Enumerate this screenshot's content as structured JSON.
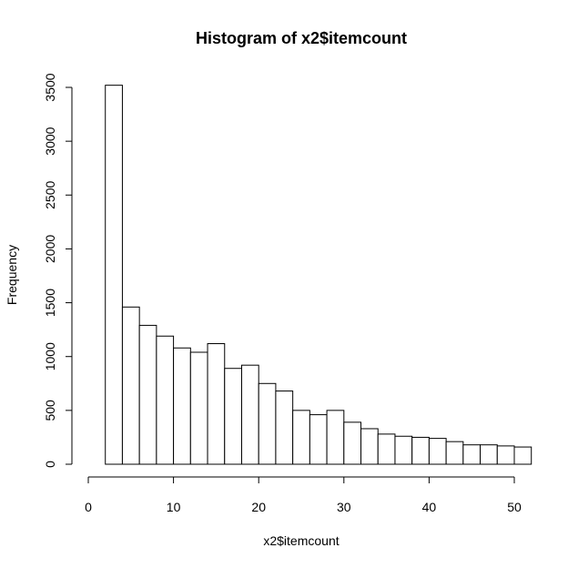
{
  "chart_data": {
    "type": "bar",
    "title": "Histogram of x2$itemcount",
    "xlabel": "x2$itemcount",
    "ylabel": "Frequency",
    "bin_edges": [
      2,
      4,
      6,
      8,
      10,
      12,
      14,
      16,
      18,
      20,
      22,
      24,
      26,
      28,
      30,
      32,
      34,
      36,
      38,
      40,
      42,
      44,
      46,
      48,
      50,
      52
    ],
    "values": [
      3520,
      1460,
      1290,
      1190,
      1080,
      1040,
      1120,
      890,
      920,
      750,
      680,
      500,
      460,
      500,
      390,
      330,
      280,
      260,
      250,
      240,
      210,
      180,
      180,
      170,
      160
    ],
    "xlim": [
      0,
      52
    ],
    "ylim": [
      0,
      3500
    ],
    "x_ticks": [
      0,
      10,
      20,
      30,
      40,
      50
    ],
    "y_ticks": [
      0,
      500,
      1000,
      1500,
      2000,
      2500,
      3000,
      3500
    ],
    "x_tick_labels": [
      "0",
      "10",
      "20",
      "30",
      "40",
      "50"
    ],
    "y_tick_labels": [
      "0",
      "500",
      "1000",
      "1500",
      "2000",
      "2500",
      "3000",
      "3500"
    ],
    "grid": false,
    "legend": "none"
  }
}
